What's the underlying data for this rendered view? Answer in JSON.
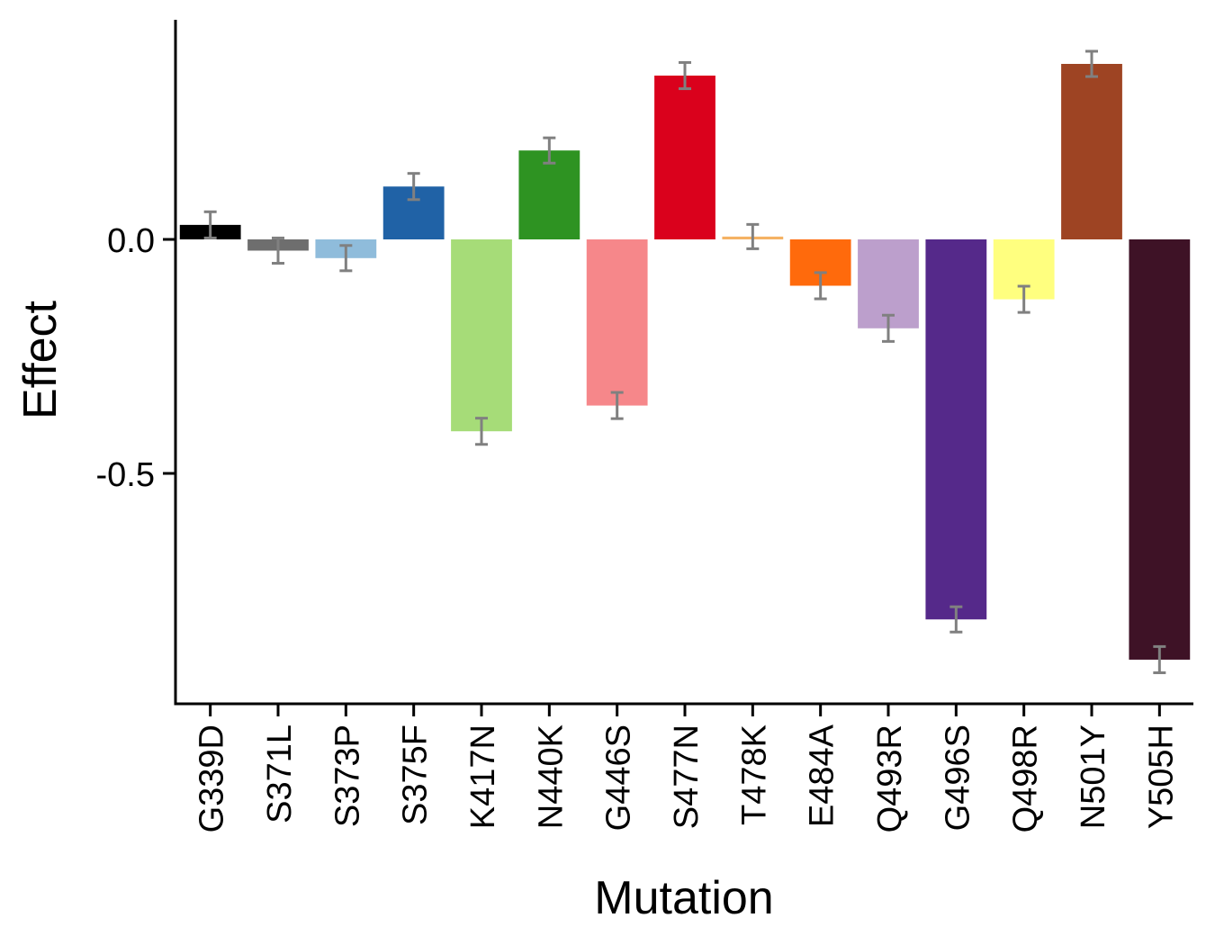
{
  "chart_data": {
    "type": "bar",
    "title": "",
    "xlabel": "Mutation",
    "ylabel": "Effect",
    "ylim": [
      -0.99,
      0.46
    ],
    "yticks": [
      {
        "value": 0.0,
        "label": "0.0"
      },
      {
        "value": -0.5,
        "label": "-0.5"
      }
    ],
    "grid": false,
    "legend": "none",
    "error_bar_color": "#808080",
    "categories": [
      "G339D",
      "S371L",
      "S373P",
      "S375F",
      "K417N",
      "N440K",
      "G446S",
      "S477N",
      "T478K",
      "E484A",
      "Q493R",
      "G496S",
      "Q498R",
      "N501Y",
      "Y505H"
    ],
    "values": [
      0.031,
      -0.024,
      -0.04,
      0.113,
      -0.41,
      0.19,
      -0.355,
      0.35,
      0.006,
      -0.099,
      -0.19,
      -0.812,
      -0.128,
      0.375,
      -0.898
    ],
    "errors": [
      0.028,
      0.027,
      0.027,
      0.028,
      0.028,
      0.027,
      0.028,
      0.028,
      0.026,
      0.028,
      0.028,
      0.027,
      0.028,
      0.027,
      0.028
    ],
    "colors": [
      "#000000",
      "#6E6E6E",
      "#8FBCDB",
      "#2062A6",
      "#A6DC78",
      "#2E9322",
      "#F6878A",
      "#DA011C",
      "#F5B264",
      "#FF6A0C",
      "#BC9FCC",
      "#55298A",
      "#FFFF7F",
      "#9E4423",
      "#3E1226"
    ]
  }
}
